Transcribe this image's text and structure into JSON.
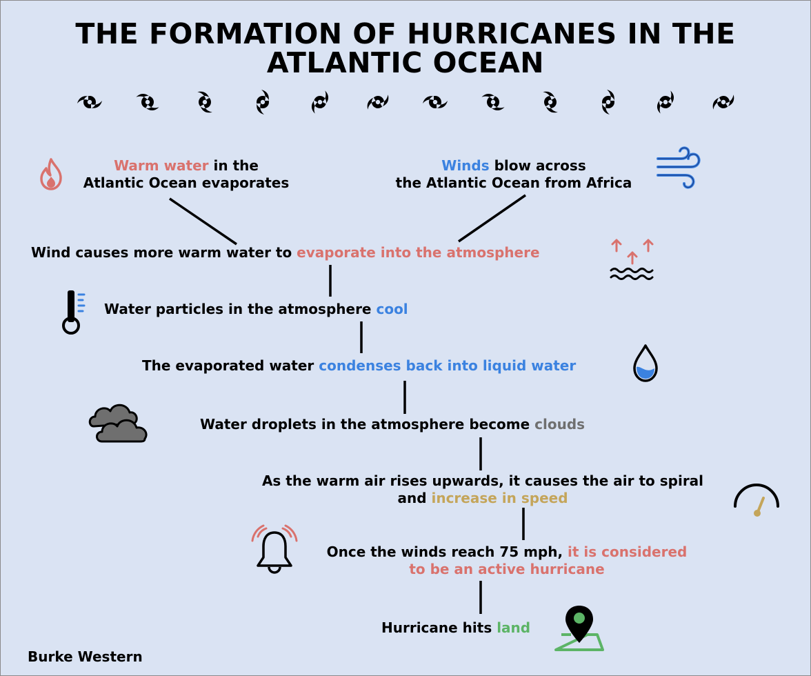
{
  "title": {
    "line1": "THE FORMATION OF HURRICANES IN THE",
    "line2": "ATLANTIC OCEAN"
  },
  "colors": {
    "background": "#dae3f3",
    "red": "#d9726d",
    "blue": "#3b82e0",
    "gray": "#6f6f6f",
    "gold": "#c4a55a",
    "green": "#5cb466"
  },
  "steps": {
    "warm_water": {
      "hl": "Warm water",
      "rest": " in the",
      "line2": "Atlantic Ocean evaporates",
      "icon": "fire-icon"
    },
    "winds": {
      "hl": "Winds",
      "rest": " blow across",
      "line2": "the Atlantic Ocean from Africa",
      "icon": "wind-icon"
    },
    "evaporate": {
      "pre": "Wind causes more warm water to ",
      "hl": "evaporate into the atmosphere",
      "icon": "evaporation-icon"
    },
    "cool": {
      "pre": "Water particles in the atmosphere ",
      "hl": "cool",
      "icon": "thermometer-icon"
    },
    "condense": {
      "pre": "The evaporated water ",
      "hl": "condenses back into liquid water",
      "icon": "water-drop-icon"
    },
    "clouds": {
      "pre": "Water droplets in the atmosphere become ",
      "hl": "clouds",
      "icon": "clouds-icon"
    },
    "speed": {
      "line1": "As the warm air rises upwards, it causes the air to spiral",
      "pre": "and ",
      "hl": "increase in speed",
      "icon": "speedometer-icon"
    },
    "active": {
      "pre": "Once the winds reach 75 mph, ",
      "hl1": "it is considered",
      "hl2": "to be an active hurricane",
      "icon": "alarm-bell-icon"
    },
    "land": {
      "pre": "Hurricane hits ",
      "hl": "land",
      "icon": "map-pin-icon"
    }
  },
  "author": "Burke Western",
  "decor": {
    "icon": "hurricane-icon",
    "count": 12
  }
}
